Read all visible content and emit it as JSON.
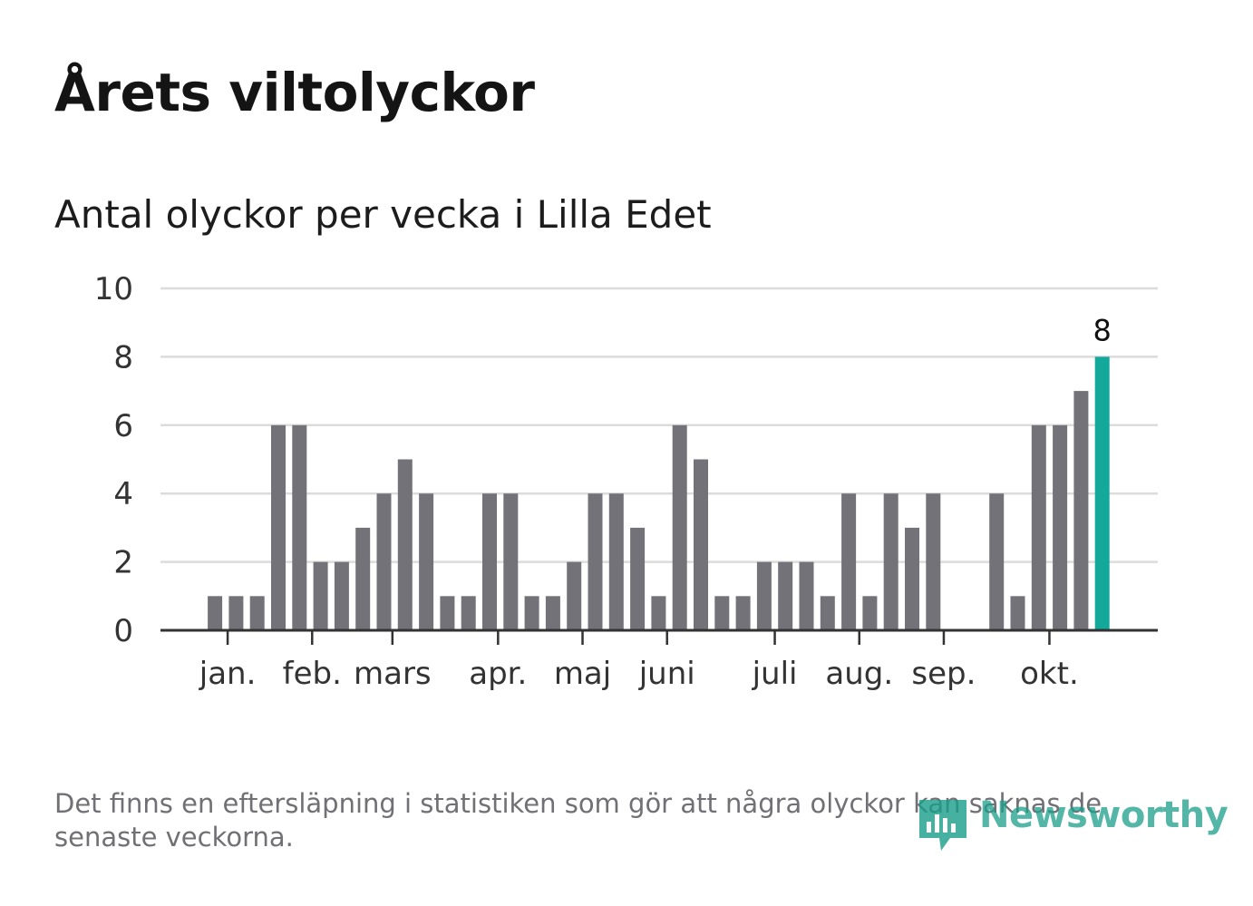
{
  "header": {
    "title": "Årets viltolyckor",
    "subtitle": "Antal olyckor per vecka i Lilla Edet"
  },
  "footer": {
    "note": "Det finns en eftersläpning i statistiken som gör att några olyckor kan saknas de senaste veckorna.",
    "brand": "Newsworthy",
    "brand_icon": "newsworthy-logo-icon"
  },
  "colors": {
    "bar": "#737278",
    "highlight": "#12a89a",
    "grid": "#dcdcdc",
    "axis": "#333333",
    "text": "#333333"
  },
  "chart_data": {
    "type": "bar",
    "title": "Antal olyckor per vecka i Lilla Edet",
    "xlabel": "",
    "ylabel": "",
    "ylim": [
      0,
      10
    ],
    "yticks": [
      "0",
      "2",
      "4",
      "6",
      "8",
      "10"
    ],
    "grid": true,
    "weeks": [
      1,
      2,
      3,
      4,
      5,
      6,
      7,
      8,
      9,
      10,
      11,
      12,
      13,
      14,
      15,
      16,
      17,
      18,
      19,
      20,
      21,
      22,
      23,
      24,
      25,
      26,
      27,
      28,
      29,
      30,
      31,
      32,
      33,
      34,
      35,
      36,
      37,
      38,
      39,
      40,
      41,
      42,
      43,
      44,
      45,
      46,
      47
    ],
    "values": [
      0,
      0,
      1,
      1,
      1,
      6,
      6,
      2,
      2,
      3,
      4,
      5,
      4,
      1,
      1,
      4,
      4,
      1,
      1,
      2,
      4,
      4,
      3,
      1,
      6,
      5,
      1,
      1,
      2,
      2,
      2,
      1,
      4,
      1,
      4,
      3,
      4,
      0,
      0,
      4,
      1,
      6,
      6,
      7,
      8,
      0,
      0
    ],
    "highlight_index": 44,
    "highlight_label": "8",
    "month_labels": [
      {
        "label": "jan.",
        "week": 3.6
      },
      {
        "label": "feb.",
        "week": 7.6
      },
      {
        "label": "mars",
        "week": 11.4
      },
      {
        "label": "apr.",
        "week": 16.4
      },
      {
        "label": "maj",
        "week": 20.4
      },
      {
        "label": "juni",
        "week": 24.4
      },
      {
        "label": "juli",
        "week": 29.5
      },
      {
        "label": "aug.",
        "week": 33.5
      },
      {
        "label": "sep.",
        "week": 37.5
      },
      {
        "label": "okt.",
        "week": 42.5
      }
    ]
  }
}
